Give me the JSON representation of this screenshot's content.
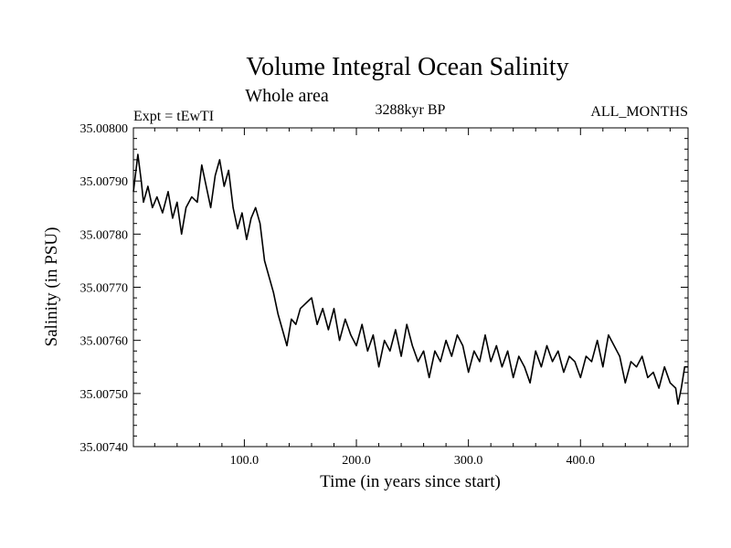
{
  "chart_data": {
    "type": "line",
    "title": "Volume Integral Ocean Salinity",
    "subtitle": "Whole area",
    "experiment_label": "Expt = tEwTI",
    "period_label": "3288kyr BP",
    "months_label": "ALL_MONTHS",
    "xlabel": "Time (in years since start)",
    "ylabel": "Salinity (in PSU)",
    "xlim": [
      1,
      496
    ],
    "ylim": [
      35.0074,
      35.008
    ],
    "xticks": [
      100,
      200,
      300,
      400
    ],
    "xtick_labels": [
      "100.0",
      "200.0",
      "300.0",
      "400.0"
    ],
    "yticks": [
      35.0074,
      35.0075,
      35.0076,
      35.0077,
      35.0078,
      35.0079,
      35.008
    ],
    "ytick_labels": [
      "35.00740",
      "35.00750",
      "35.00760",
      "35.00770",
      "35.00780",
      "35.00790",
      "35.00800"
    ],
    "grid": false,
    "series": [
      {
        "name": "Salinity",
        "x": [
          1,
          5,
          8,
          10,
          14,
          18,
          22,
          27,
          32,
          36,
          40,
          44,
          48,
          53,
          58,
          62,
          66,
          70,
          74,
          78,
          82,
          86,
          90,
          94,
          98,
          102,
          106,
          110,
          114,
          118,
          122,
          126,
          130,
          134,
          138,
          142,
          146,
          150,
          155,
          160,
          165,
          170,
          175,
          180,
          185,
          190,
          195,
          200,
          205,
          210,
          215,
          220,
          225,
          230,
          235,
          240,
          245,
          250,
          255,
          260,
          265,
          270,
          275,
          280,
          285,
          290,
          295,
          300,
          305,
          310,
          315,
          320,
          325,
          330,
          335,
          340,
          345,
          350,
          355,
          360,
          365,
          370,
          375,
          380,
          385,
          390,
          395,
          400,
          405,
          410,
          415,
          420,
          425,
          430,
          435,
          440,
          445,
          450,
          455,
          460,
          465,
          470,
          475,
          480,
          485,
          487,
          490,
          493,
          496
        ],
        "y": [
          35.00788,
          35.00795,
          35.0079,
          35.00786,
          35.00789,
          35.00785,
          35.00787,
          35.00784,
          35.00788,
          35.00783,
          35.00786,
          35.0078,
          35.00785,
          35.00787,
          35.00786,
          35.00793,
          35.00789,
          35.00785,
          35.00791,
          35.00794,
          35.00789,
          35.00792,
          35.00785,
          35.00781,
          35.00784,
          35.00779,
          35.00783,
          35.00785,
          35.00782,
          35.00775,
          35.00772,
          35.00769,
          35.00765,
          35.00762,
          35.00759,
          35.00764,
          35.00763,
          35.00766,
          35.00767,
          35.00768,
          35.00763,
          35.00766,
          35.00762,
          35.00766,
          35.0076,
          35.00764,
          35.00761,
          35.00759,
          35.00763,
          35.00758,
          35.00761,
          35.00755,
          35.0076,
          35.00758,
          35.00762,
          35.00757,
          35.00763,
          35.00759,
          35.00756,
          35.00758,
          35.00753,
          35.00758,
          35.00756,
          35.0076,
          35.00757,
          35.00761,
          35.00759,
          35.00754,
          35.00758,
          35.00756,
          35.00761,
          35.00756,
          35.00759,
          35.00755,
          35.00758,
          35.00753,
          35.00757,
          35.00755,
          35.00752,
          35.00758,
          35.00755,
          35.00759,
          35.00756,
          35.00758,
          35.00754,
          35.00757,
          35.00756,
          35.00753,
          35.00757,
          35.00756,
          35.0076,
          35.00755,
          35.00761,
          35.00759,
          35.00757,
          35.00752,
          35.00756,
          35.00755,
          35.00757,
          35.00753,
          35.00754,
          35.00751,
          35.00755,
          35.00752,
          35.00751,
          35.00748,
          35.00751,
          35.00755,
          35.00755
        ]
      }
    ]
  }
}
